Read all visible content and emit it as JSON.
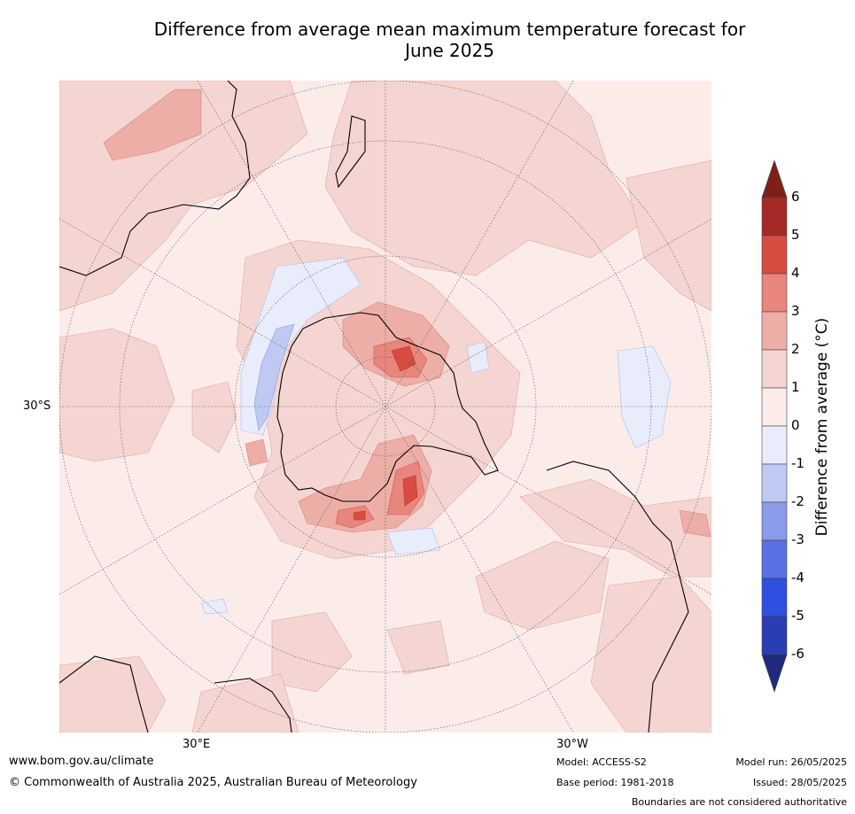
{
  "title_line1": "Difference from average mean maximum temperature forecast for",
  "title_line2": "June 2025",
  "graticule": {
    "lat_label": "30°S",
    "lon_label_left": "30°E",
    "lon_label_right": "30°W"
  },
  "colorbar": {
    "label": "Difference from average (°C)",
    "ticks": [
      "6",
      "5",
      "4",
      "3",
      "2",
      "1",
      "0",
      "-1",
      "-2",
      "-3",
      "-4",
      "-5",
      "-6"
    ],
    "colors": [
      "#7f1f1a",
      "#a52a27",
      "#d94c42",
      "#e8857d",
      "#eeaea8",
      "#f5d5d1",
      "#fbecea",
      "#e9ecfb",
      "#c0c9f3",
      "#8a9bea",
      "#5a71e3",
      "#2e4fe0",
      "#2a3db3",
      "#1f2a7e"
    ]
  },
  "footer": {
    "website": "www.bom.gov.au/climate",
    "copyright": "© Commonwealth of Australia 2025, Australian Bureau of Meteorology",
    "model": "Model: ACCESS-S2",
    "base_period": "Base period: 1981-2018",
    "model_run": "Model run: 26/05/2025",
    "issued": "Issued: 28/05/2025",
    "disclaimer": "Boundaries are not considered authoritative"
  }
}
